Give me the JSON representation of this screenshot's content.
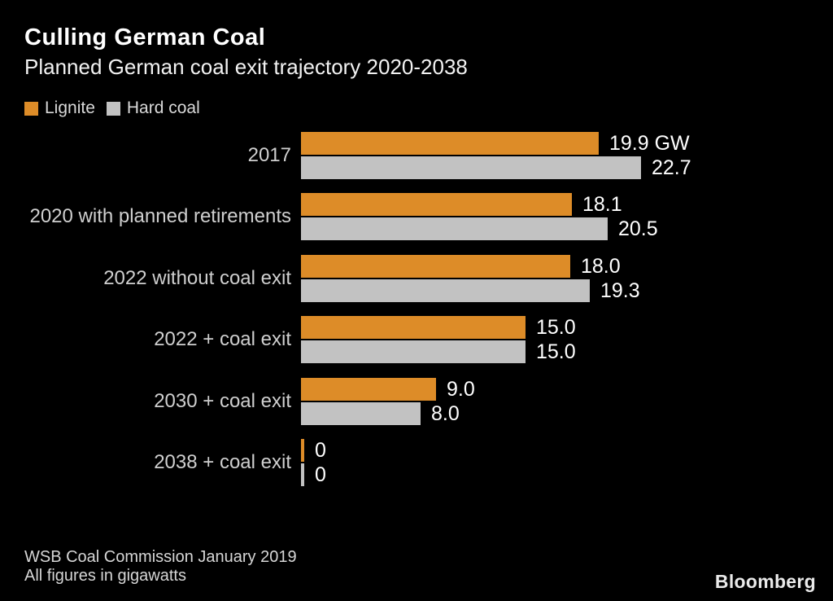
{
  "header": {
    "title": "Culling German Coal",
    "subtitle": "Planned German coal exit trajectory 2020-2038"
  },
  "legend": {
    "items": [
      {
        "label": "Lignite",
        "color": "#dd8c28"
      },
      {
        "label": "Hard coal",
        "color": "#c2c2c2"
      }
    ]
  },
  "chart_data": {
    "type": "bar",
    "orientation": "horizontal",
    "title": "Culling German Coal",
    "subtitle": "Planned German coal exit trajectory 2020-2038",
    "unit": "gigawatts",
    "categories": [
      "2017",
      "2020 with planned retirements",
      "2022 without coal exit",
      "2022 + coal exit",
      "2030 + coal exit",
      "2038 + coal exit"
    ],
    "series": [
      {
        "name": "Lignite",
        "color": "#dd8c28",
        "values": [
          19.9,
          18.1,
          18.0,
          15.0,
          9.0,
          0
        ],
        "labels": [
          "19.9 GW",
          "18.1",
          "18.0",
          "15.0",
          "9.0",
          "0"
        ]
      },
      {
        "name": "Hard coal",
        "color": "#c2c2c2",
        "values": [
          22.7,
          20.5,
          19.3,
          15.0,
          8.0,
          0
        ],
        "labels": [
          "22.7",
          "20.5",
          "19.3",
          "15.0",
          "8.0",
          "0"
        ]
      }
    ],
    "xlim": [
      0,
      22.7
    ],
    "grid": false,
    "legend_position": "top-left",
    "value_labels": "outside-end"
  },
  "footer": {
    "source": "WSB Coal Commission January 2019",
    "note": "All figures in gigawatts",
    "brand": "Bloomberg"
  },
  "colors": {
    "background": "#000000",
    "title": "#ffffff",
    "category_label": "#cfcfcf",
    "value_label": "#ffffff",
    "lignite": "#dd8c28",
    "hard_coal": "#c2c2c2"
  }
}
